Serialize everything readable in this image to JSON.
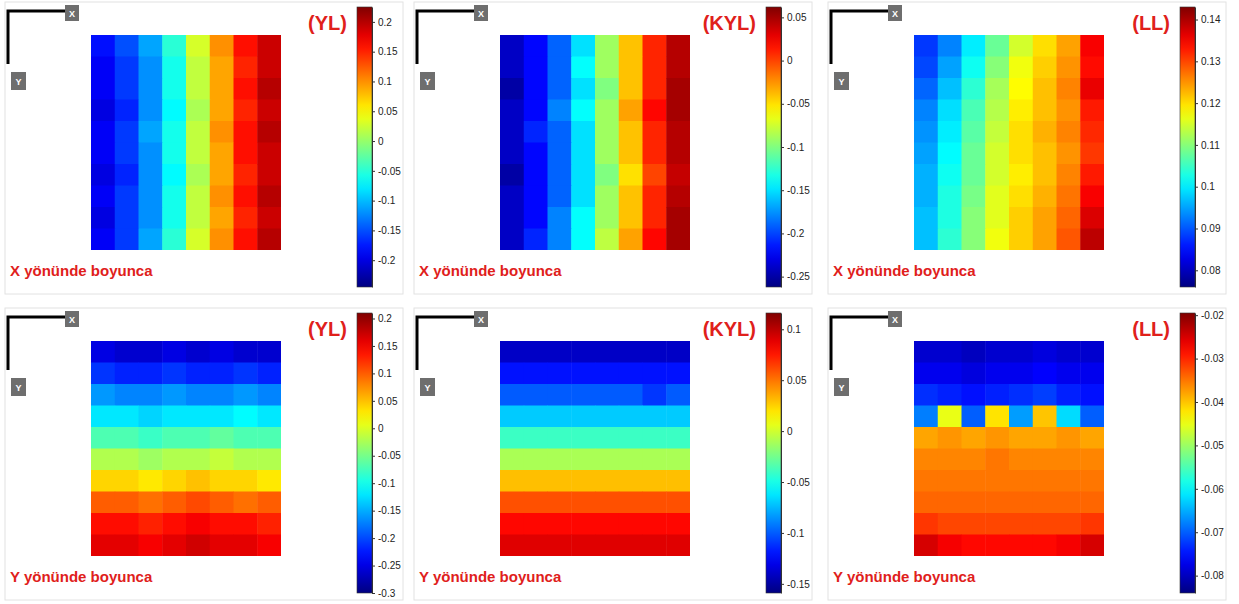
{
  "chart_data": [
    {
      "type": "heatmap",
      "title": "(YL)",
      "subtitle": "X yönünde boyunca",
      "xlabel": "X",
      "ylabel": "Y",
      "color_range": [
        -0.245,
        0.225
      ],
      "color_ticks": [
        0.2,
        0.15,
        0.1,
        0.05,
        0,
        -0.05,
        -0.1,
        -0.15,
        -0.2
      ],
      "values": [
        [
          -0.18,
          -0.15,
          -0.11,
          -0.05,
          0.03,
          0.1,
          0.16,
          0.19
        ],
        [
          -0.19,
          -0.16,
          -0.12,
          -0.06,
          0.02,
          0.09,
          0.15,
          0.19
        ],
        [
          -0.19,
          -0.16,
          -0.12,
          -0.06,
          0.02,
          0.09,
          0.16,
          0.2
        ],
        [
          -0.2,
          -0.17,
          -0.12,
          -0.07,
          0.01,
          0.09,
          0.15,
          0.19
        ],
        [
          -0.19,
          -0.16,
          -0.11,
          -0.06,
          0.02,
          0.1,
          0.16,
          0.2
        ],
        [
          -0.19,
          -0.16,
          -0.12,
          -0.06,
          0.02,
          0.09,
          0.16,
          0.19
        ],
        [
          -0.2,
          -0.17,
          -0.12,
          -0.07,
          0.01,
          0.09,
          0.15,
          0.19
        ],
        [
          -0.19,
          -0.16,
          -0.12,
          -0.06,
          0.02,
          0.1,
          0.16,
          0.2
        ],
        [
          -0.2,
          -0.16,
          -0.12,
          -0.06,
          0.02,
          0.09,
          0.15,
          0.19
        ],
        [
          -0.19,
          -0.16,
          -0.11,
          -0.05,
          0.03,
          0.1,
          0.16,
          0.2
        ]
      ]
    },
    {
      "type": "heatmap",
      "title": "(KYL)",
      "subtitle": "X yönünde boyunca",
      "xlabel": "X",
      "ylabel": "Y",
      "color_range": [
        -0.262,
        0.062
      ],
      "color_ticks": [
        0.05,
        0,
        -0.05,
        -0.1,
        -0.15,
        -0.2,
        -0.25
      ],
      "values": [
        [
          -0.24,
          -0.22,
          -0.19,
          -0.15,
          -0.09,
          -0.04,
          0.01,
          0.045
        ],
        [
          -0.24,
          -0.22,
          -0.19,
          -0.14,
          -0.09,
          -0.04,
          0.01,
          0.045
        ],
        [
          -0.25,
          -0.22,
          -0.19,
          -0.15,
          -0.1,
          -0.04,
          0.01,
          0.05
        ],
        [
          -0.24,
          -0.22,
          -0.18,
          -0.14,
          -0.09,
          -0.03,
          0.02,
          0.05
        ],
        [
          -0.24,
          -0.21,
          -0.19,
          -0.15,
          -0.09,
          -0.04,
          0.01,
          0.045
        ],
        [
          -0.24,
          -0.22,
          -0.19,
          -0.15,
          -0.09,
          -0.04,
          0.01,
          0.045
        ],
        [
          -0.25,
          -0.22,
          -0.19,
          -0.15,
          -0.1,
          -0.05,
          0.0,
          0.04
        ],
        [
          -0.24,
          -0.22,
          -0.19,
          -0.15,
          -0.09,
          -0.04,
          0.01,
          0.045
        ],
        [
          -0.24,
          -0.22,
          -0.18,
          -0.14,
          -0.09,
          -0.04,
          0.01,
          0.05
        ],
        [
          -0.24,
          -0.21,
          -0.18,
          -0.14,
          -0.08,
          -0.03,
          0.02,
          0.05
        ]
      ]
    },
    {
      "type": "heatmap",
      "title": "(LL)",
      "subtitle": "X yönünde boyunca",
      "xlabel": "X",
      "ylabel": "Y",
      "color_range": [
        0.076,
        0.143
      ],
      "color_ticks": [
        0.14,
        0.13,
        0.12,
        0.11,
        0.1,
        0.09,
        0.08
      ],
      "values": [
        [
          0.088,
          0.093,
          0.1,
          0.108,
          0.115,
          0.12,
          0.124,
          0.135
        ],
        [
          0.089,
          0.095,
          0.102,
          0.11,
          0.117,
          0.121,
          0.125,
          0.134
        ],
        [
          0.091,
          0.097,
          0.104,
          0.112,
          0.118,
          0.122,
          0.126,
          0.136
        ],
        [
          0.093,
          0.099,
          0.106,
          0.113,
          0.119,
          0.122,
          0.125,
          0.133
        ],
        [
          0.094,
          0.1,
          0.107,
          0.114,
          0.12,
          0.123,
          0.126,
          0.132
        ],
        [
          0.095,
          0.101,
          0.108,
          0.115,
          0.12,
          0.122,
          0.125,
          0.131
        ],
        [
          0.096,
          0.102,
          0.108,
          0.115,
          0.119,
          0.122,
          0.126,
          0.133
        ],
        [
          0.096,
          0.103,
          0.109,
          0.116,
          0.12,
          0.123,
          0.127,
          0.135
        ],
        [
          0.097,
          0.103,
          0.11,
          0.116,
          0.121,
          0.124,
          0.128,
          0.137
        ],
        [
          0.097,
          0.104,
          0.11,
          0.117,
          0.121,
          0.124,
          0.129,
          0.139
        ]
      ]
    },
    {
      "type": "heatmap",
      "title": "(YL)",
      "subtitle": "Y yönünde boyunca",
      "xlabel": "X",
      "ylabel": "Y",
      "color_range": [
        -0.3,
        0.21
      ],
      "color_ticks": [
        0.2,
        0.15,
        0.1,
        0.05,
        0,
        -0.05,
        -0.1,
        -0.15,
        -0.2,
        -0.25,
        -0.3
      ],
      "values": [
        [
          -0.25,
          -0.26,
          -0.26,
          -0.25,
          -0.26,
          -0.25,
          -0.26,
          -0.26
        ],
        [
          -0.21,
          -0.22,
          -0.22,
          -0.21,
          -0.22,
          -0.22,
          -0.21,
          -0.22
        ],
        [
          -0.16,
          -0.17,
          -0.17,
          -0.16,
          -0.17,
          -0.17,
          -0.16,
          -0.17
        ],
        [
          -0.12,
          -0.12,
          -0.13,
          -0.12,
          -0.12,
          -0.12,
          -0.11,
          -0.12
        ],
        [
          -0.07,
          -0.07,
          -0.08,
          -0.07,
          -0.07,
          -0.06,
          -0.07,
          -0.07
        ],
        [
          -0.02,
          -0.02,
          -0.03,
          -0.02,
          -0.02,
          -0.01,
          -0.02,
          -0.02
        ],
        [
          0.04,
          0.04,
          0.03,
          0.04,
          0.05,
          0.04,
          0.04,
          0.03
        ],
        [
          0.1,
          0.1,
          0.09,
          0.1,
          0.11,
          0.1,
          0.09,
          0.1
        ],
        [
          0.14,
          0.14,
          0.13,
          0.14,
          0.15,
          0.14,
          0.14,
          0.13
        ],
        [
          0.16,
          0.16,
          0.15,
          0.16,
          0.17,
          0.16,
          0.16,
          0.15
        ]
      ]
    },
    {
      "type": "heatmap",
      "title": "(KYL)",
      "subtitle": "Y yönünde boyunca",
      "xlabel": "X",
      "ylabel": "Y",
      "color_range": [
        -0.159,
        0.116
      ],
      "color_ticks": [
        0.1,
        0.05,
        0,
        -0.05,
        -0.1,
        -0.15
      ],
      "values": [
        [
          -0.14,
          -0.14,
          -0.14,
          -0.14,
          -0.14,
          -0.14,
          -0.14,
          -0.14
        ],
        [
          -0.12,
          -0.12,
          -0.12,
          -0.12,
          -0.12,
          -0.12,
          -0.12,
          -0.12
        ],
        [
          -0.1,
          -0.1,
          -0.1,
          -0.1,
          -0.1,
          -0.1,
          -0.11,
          -0.1
        ],
        [
          -0.07,
          -0.07,
          -0.07,
          -0.07,
          -0.07,
          -0.07,
          -0.07,
          -0.07
        ],
        [
          -0.04,
          -0.04,
          -0.04,
          -0.04,
          -0.04,
          -0.04,
          -0.04,
          -0.04
        ],
        [
          -0.01,
          -0.01,
          -0.01,
          -0.01,
          -0.01,
          -0.01,
          -0.01,
          -0.01
        ],
        [
          0.03,
          0.03,
          0.03,
          0.03,
          0.03,
          0.03,
          0.03,
          0.03
        ],
        [
          0.06,
          0.06,
          0.06,
          0.06,
          0.06,
          0.06,
          0.06,
          0.06
        ],
        [
          0.08,
          0.08,
          0.08,
          0.08,
          0.08,
          0.08,
          0.08,
          0.08
        ],
        [
          0.09,
          0.09,
          0.09,
          0.09,
          0.09,
          0.09,
          0.09,
          0.09
        ]
      ]
    },
    {
      "type": "heatmap",
      "title": "(LL)",
      "subtitle": "Y yönünde boyunca",
      "xlabel": "X",
      "ylabel": "Y",
      "color_range": [
        -0.084,
        -0.0195
      ],
      "color_ticks": [
        -0.02,
        -0.03,
        -0.04,
        -0.05,
        -0.06,
        -0.07,
        -0.08
      ],
      "values": [
        [
          -0.079,
          -0.079,
          -0.08,
          -0.079,
          -0.079,
          -0.078,
          -0.079,
          -0.079
        ],
        [
          -0.077,
          -0.077,
          -0.078,
          -0.077,
          -0.077,
          -0.076,
          -0.077,
          -0.077
        ],
        [
          -0.073,
          -0.074,
          -0.075,
          -0.074,
          -0.073,
          -0.072,
          -0.074,
          -0.075
        ],
        [
          -0.068,
          -0.045,
          -0.07,
          -0.042,
          -0.066,
          -0.04,
          -0.062,
          -0.07
        ],
        [
          -0.038,
          -0.037,
          -0.038,
          -0.037,
          -0.038,
          -0.038,
          -0.037,
          -0.038
        ],
        [
          -0.036,
          -0.036,
          -0.036,
          -0.035,
          -0.036,
          -0.036,
          -0.036,
          -0.036
        ],
        [
          -0.035,
          -0.035,
          -0.035,
          -0.035,
          -0.035,
          -0.035,
          -0.035,
          -0.035
        ],
        [
          -0.034,
          -0.034,
          -0.034,
          -0.034,
          -0.034,
          -0.034,
          -0.034,
          -0.034
        ],
        [
          -0.031,
          -0.032,
          -0.032,
          -0.032,
          -0.032,
          -0.032,
          -0.032,
          -0.031
        ],
        [
          -0.025,
          -0.027,
          -0.028,
          -0.028,
          -0.028,
          -0.028,
          -0.027,
          -0.025
        ]
      ]
    }
  ]
}
